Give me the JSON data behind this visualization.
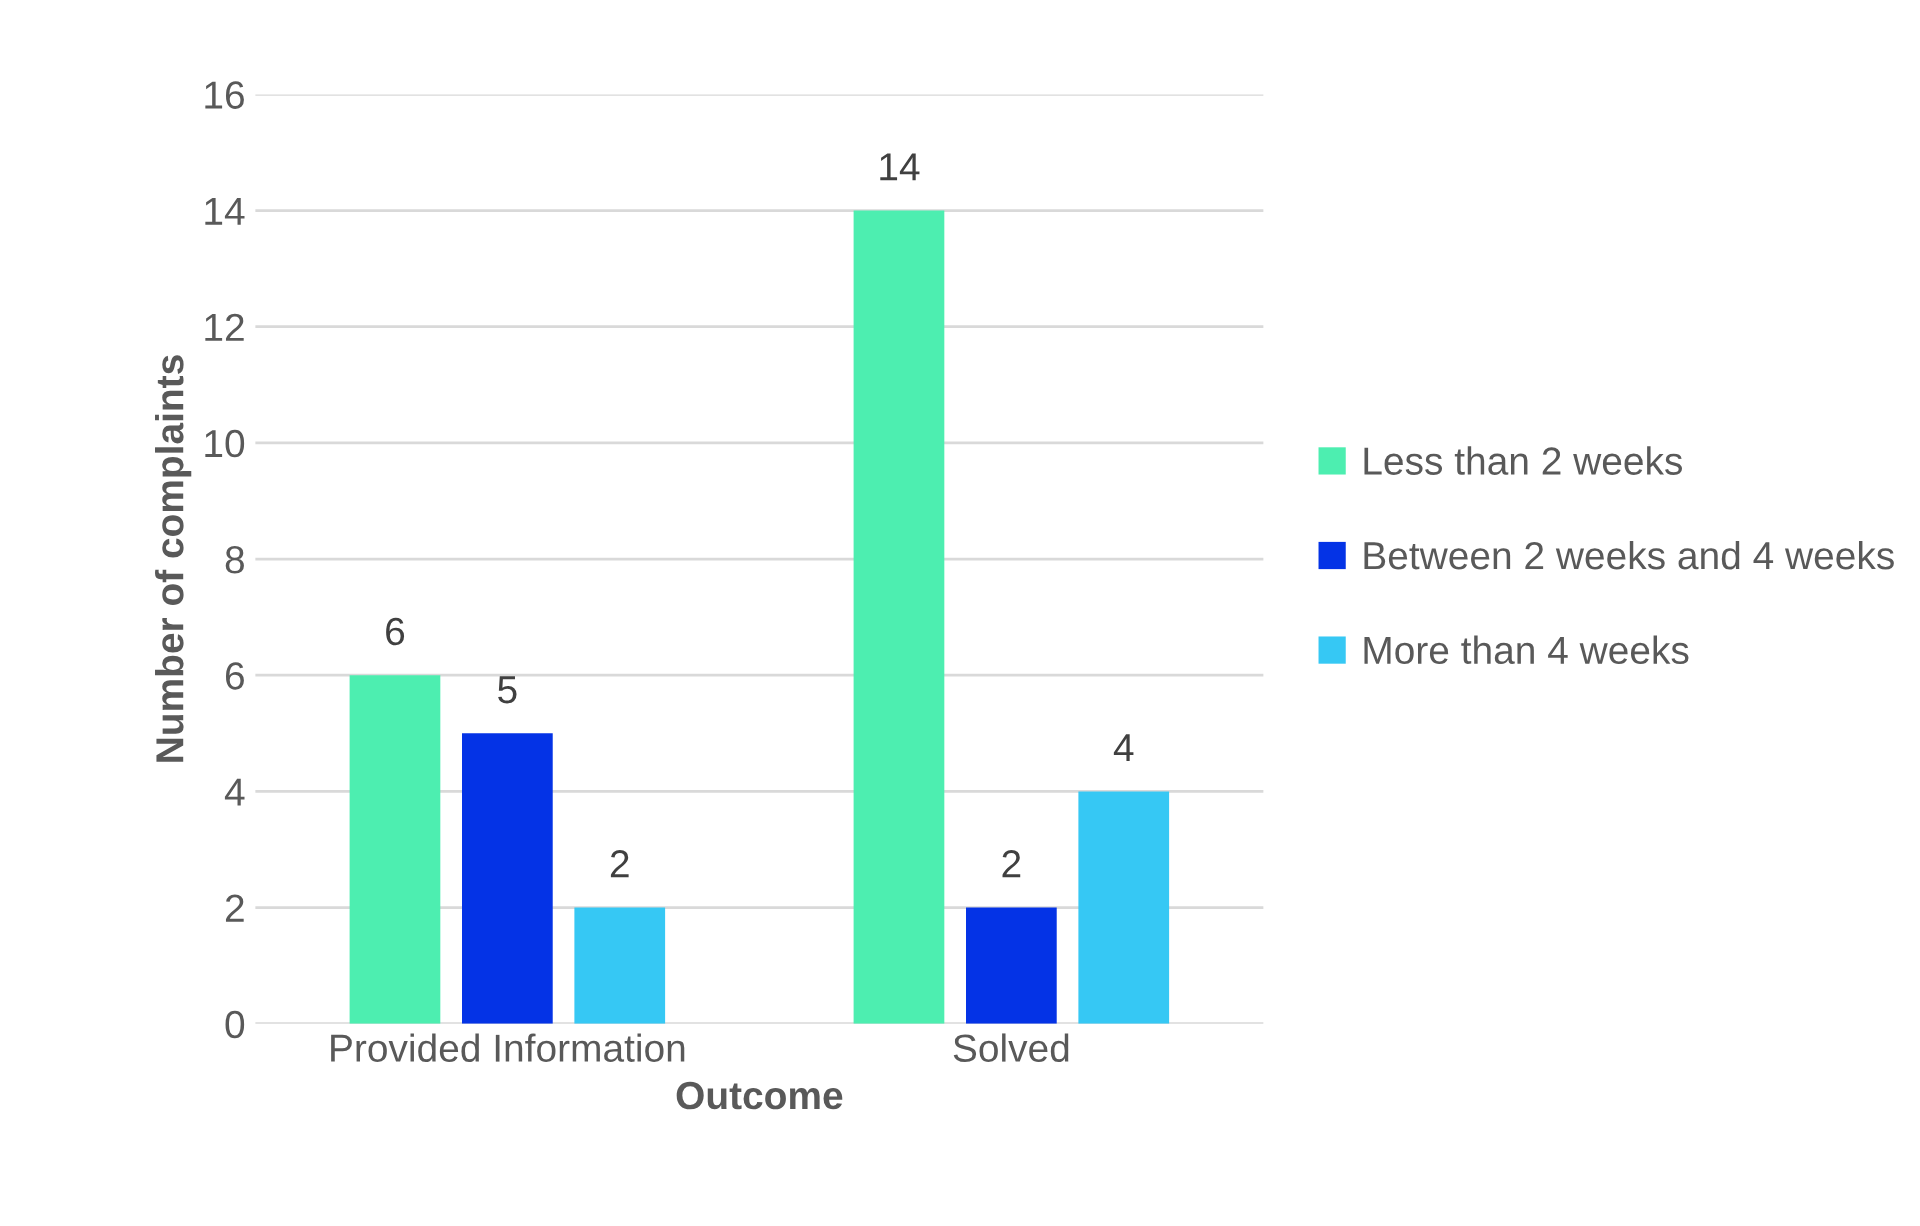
{
  "chart_data": {
    "type": "bar",
    "xlabel": "Outcome",
    "ylabel": "Number of complaints",
    "categories": [
      "Provided Information",
      "Solved"
    ],
    "series": [
      {
        "name": "Less than 2 weeks",
        "color": "#4deeb0",
        "values": [
          6,
          14
        ]
      },
      {
        "name": "Between 2 weeks and 4 weeks",
        "color": "#0433e6",
        "values": [
          5,
          2
        ]
      },
      {
        "name": "More than 4 weeks",
        "color": "#36c8f4",
        "values": [
          2,
          4
        ]
      }
    ],
    "ylim": [
      0,
      16
    ],
    "yticks": [
      0,
      2,
      4,
      6,
      8,
      10,
      12,
      14,
      16
    ],
    "grid": "y",
    "legend": "right",
    "data_labels": true
  }
}
